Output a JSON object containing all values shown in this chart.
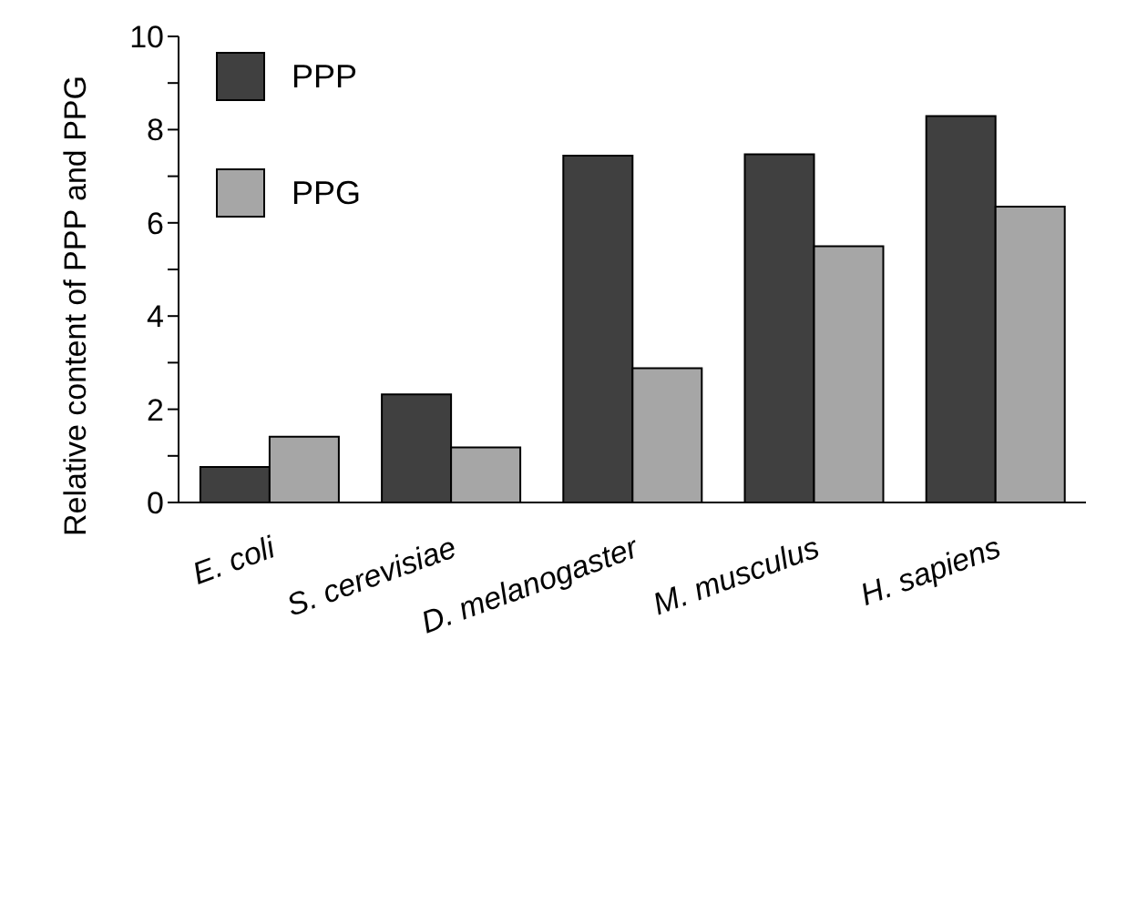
{
  "chart_data": {
    "type": "bar",
    "ylabel": "Relative content of PPP and PPG",
    "categories": [
      "E. coli",
      "S. cerevisiae",
      "D. melanogaster",
      "M. musculus",
      "H. sapiens"
    ],
    "series": [
      {
        "name": "PPP",
        "color": "#404040",
        "values": [
          0.76,
          2.32,
          7.44,
          7.47,
          8.29
        ]
      },
      {
        "name": "PPG",
        "color": "#a6a6a6",
        "values": [
          1.41,
          1.18,
          2.88,
          5.5,
          6.35
        ]
      }
    ],
    "ylim": [
      0,
      10
    ],
    "yticks": [
      0,
      {
        "value": 1,
        "label": null
      },
      2,
      {
        "value": 3,
        "label": null
      },
      4,
      {
        "value": 5,
        "label": null
      },
      6,
      {
        "value": 7,
        "label": null
      },
      8,
      {
        "value": 9,
        "label": null
      },
      10
    ],
    "grid": false,
    "legend": "top left"
  }
}
